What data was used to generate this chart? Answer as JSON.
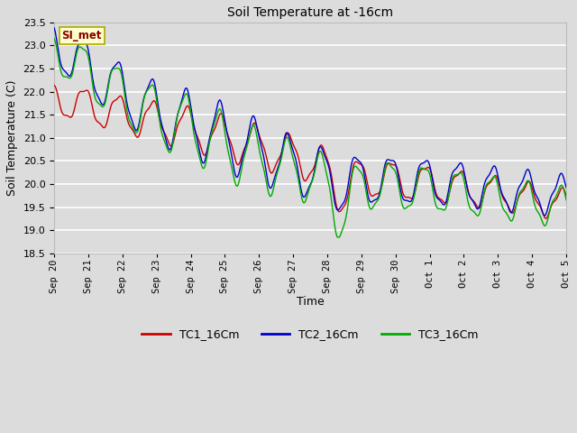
{
  "title": "Soil Temperature at -16cm",
  "xlabel": "Time",
  "ylabel": "Soil Temperature (C)",
  "ylim": [
    18.5,
    23.5
  ],
  "bg_color": "#dcdcdc",
  "grid_color": "#ffffff",
  "legend_label": "SI_met",
  "series": {
    "TC1_16Cm": {
      "color": "#cc0000",
      "lw": 1.0
    },
    "TC2_16Cm": {
      "color": "#0000cc",
      "lw": 1.0
    },
    "TC3_16Cm": {
      "color": "#00aa00",
      "lw": 1.0
    }
  },
  "x_tick_labels": [
    "Sep 20",
    "Sep 21",
    "Sep 22",
    "Sep 23",
    "Sep 24",
    "Sep 25",
    "Sep 26",
    "Sep 27",
    "Sep 28",
    "Sep 29",
    "Sep 30",
    "Oct 1",
    "Oct 2",
    "Oct 3",
    "Oct 4",
    "Oct 5"
  ],
  "yticks": [
    18.5,
    19.0,
    19.5,
    20.0,
    20.5,
    21.0,
    21.5,
    22.0,
    22.5,
    23.0,
    23.5
  ]
}
